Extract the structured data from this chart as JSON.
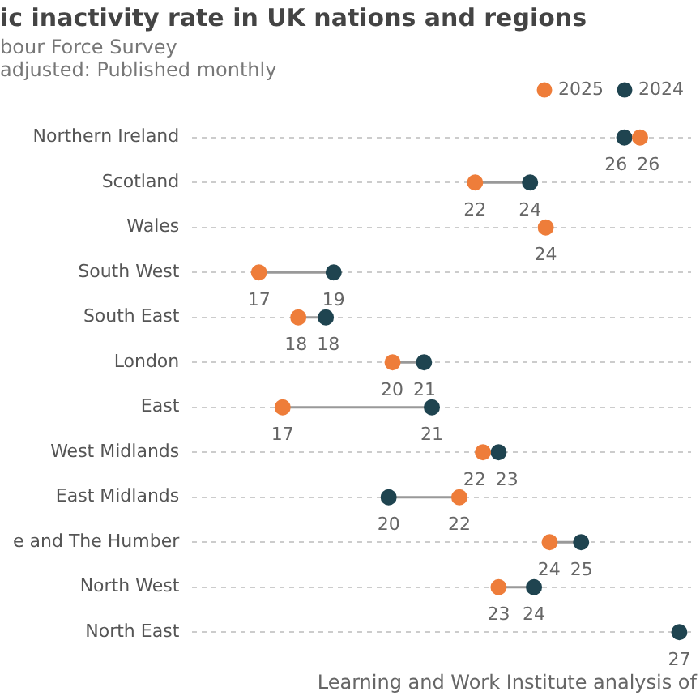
{
  "chart_data": {
    "type": "scatter",
    "orientation": "horizontal",
    "title": "ic inactivity rate in UK nations and regions",
    "subtitle": "bour Force Survey\nadjusted: Published monthly",
    "annotations": [
      "Learning and Work Institute analysis of"
    ],
    "categories": [
      "Northern Ireland",
      "Scotland",
      "Wales",
      "South West",
      "South East",
      "London",
      "East",
      "West Midlands",
      "East Midlands",
      "e and The Humber",
      "North West",
      "North East"
    ],
    "series": [
      {
        "name": "2025",
        "color": "#ee7d3a",
        "values": [
          26.4,
          22.2,
          24.0,
          16.7,
          17.7,
          20.1,
          17.3,
          22.4,
          21.8,
          24.1,
          22.8,
          null
        ],
        "value_labels": [
          "26",
          "22",
          "24",
          "17",
          "18",
          "20",
          "17",
          "22",
          "22",
          "24",
          "23",
          null
        ]
      },
      {
        "name": "2024",
        "color": "#1f4450",
        "values": [
          26.0,
          23.6,
          null,
          18.6,
          18.4,
          20.9,
          21.1,
          22.8,
          20.0,
          24.9,
          23.7,
          27.4
        ],
        "value_labels": [
          "26",
          "24",
          null,
          "19",
          "18",
          "21",
          "21",
          "23",
          "20",
          "25",
          "24",
          "27"
        ]
      }
    ],
    "xlim": [
      15,
      27.7
    ],
    "tick_labels": "y",
    "grid": "y",
    "legend": "top right",
    "marker": "circle"
  }
}
